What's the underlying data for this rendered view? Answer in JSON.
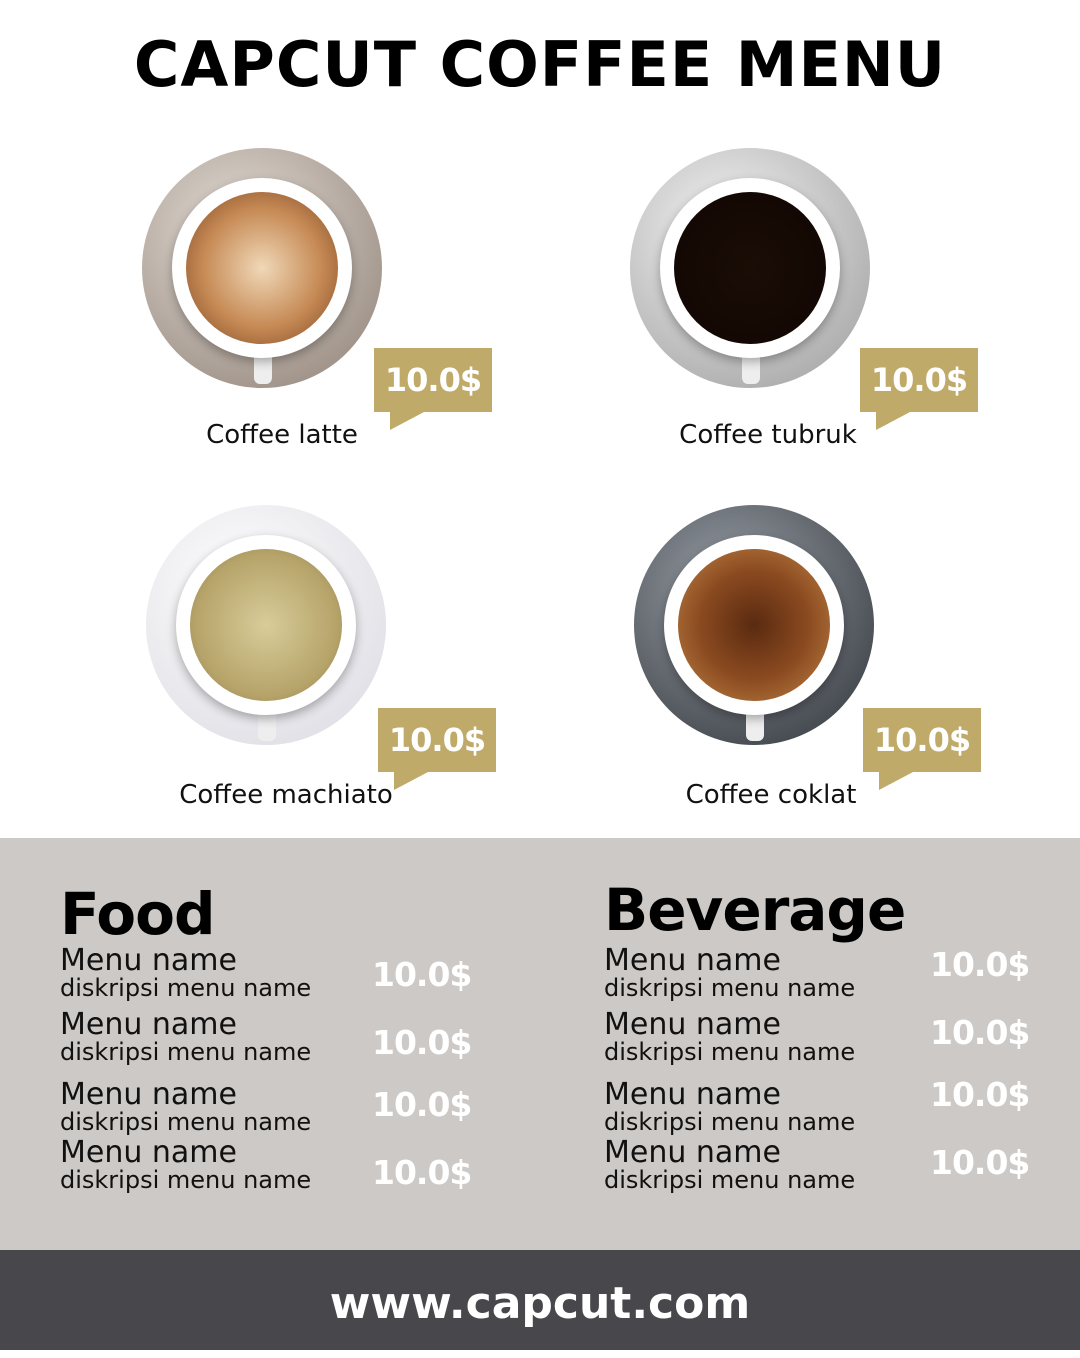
{
  "title": "CAPCUT COFFEE MENU",
  "colors": {
    "tag": "#bfaa6a",
    "lower_bg": "#cdc9c6",
    "footer_bg": "#48474c"
  },
  "coffees": [
    {
      "name": "Coffee latte",
      "price": "10.0$"
    },
    {
      "name": "Coffee tubruk",
      "price": "10.0$"
    },
    {
      "name": "Coffee machiato",
      "price": "10.0$"
    },
    {
      "name": "Coffee coklat",
      "price": "10.0$"
    }
  ],
  "food": {
    "title": "Food",
    "items": [
      {
        "name": "Menu name",
        "desc": "diskripsi menu name",
        "price": "10.0$"
      },
      {
        "name": "Menu name",
        "desc": "diskripsi menu name",
        "price": "10.0$"
      },
      {
        "name": "Menu name",
        "desc": "diskripsi menu name",
        "price": "10.0$"
      },
      {
        "name": "Menu name",
        "desc": "diskripsi menu name",
        "price": "10.0$"
      }
    ]
  },
  "beverage": {
    "title": "Beverage",
    "items": [
      {
        "name": "Menu name",
        "desc": "diskripsi menu name",
        "price": "10.0$"
      },
      {
        "name": "Menu name",
        "desc": "diskripsi menu name",
        "price": "10.0$"
      },
      {
        "name": "Menu name",
        "desc": "diskripsi menu name",
        "price": "10.0$"
      },
      {
        "name": "Menu name",
        "desc": "diskripsi menu name",
        "price": "10.0$"
      }
    ]
  },
  "footer": "www.capcut.com"
}
